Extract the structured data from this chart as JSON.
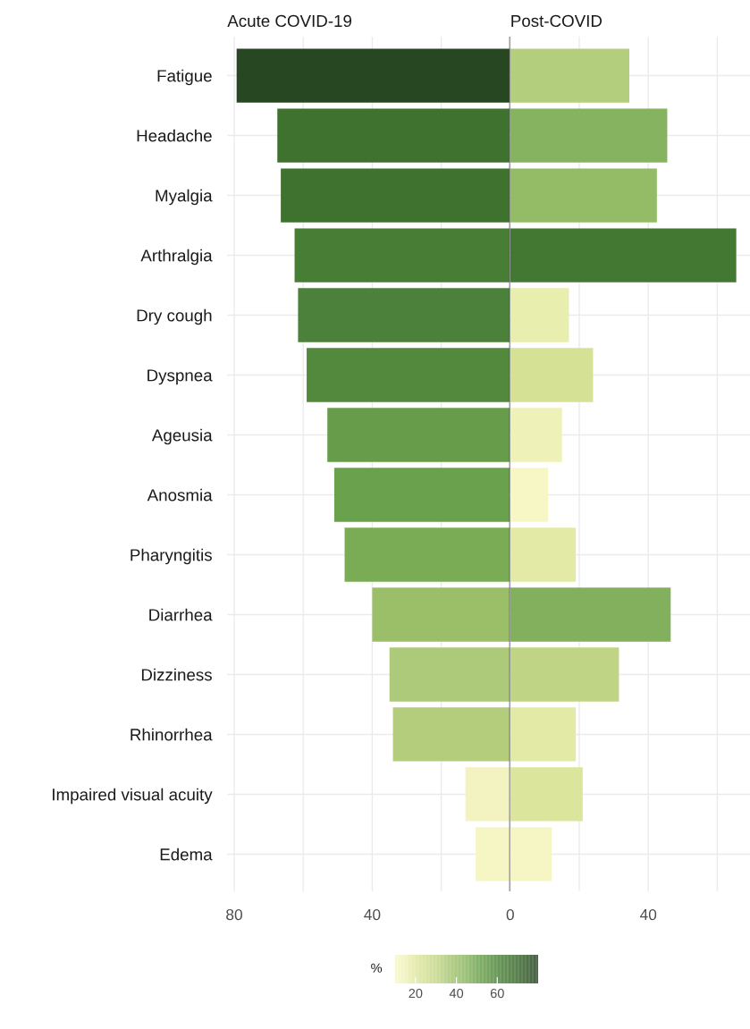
{
  "chart_data": [
    {
      "type": "bar",
      "orientation": "horizontal",
      "title": "Acute COVID-19",
      "categories": [
        "Fatigue",
        "Headache",
        "Myalgia",
        "Arthralgia",
        "Dry cough",
        "Dyspnea",
        "Ageusia",
        "Anosmia",
        "Pharyngitis",
        "Diarrhea",
        "Dizziness",
        "Rhinorrhea",
        "Impaired visual acuity",
        "Edema"
      ],
      "values": [
        79.3,
        67.5,
        66.5,
        62.5,
        61.5,
        59,
        53,
        51,
        48,
        40,
        35,
        34,
        13,
        10
      ],
      "colors": [
        "#264722",
        "#3f712f",
        "#3f712f",
        "#477d35",
        "#4b813a",
        "#52893d",
        "#679c4a",
        "#6aa14d",
        "#7aab55",
        "#9bbf69",
        "#adc97a",
        "#b3cd7d",
        "#f2f3c0",
        "#f6f6c4"
      ],
      "xlim": [
        82,
        0
      ],
      "xticks": [
        80,
        {
          "value": 60,
          "label": null
        },
        40,
        {
          "value": 20,
          "label": null
        },
        0
      ],
      "grid": true,
      "ref_lines": [
        {
          "axis": "x",
          "value": 0,
          "color": "#555555"
        }
      ],
      "clabel": "%",
      "clim": [
        10,
        80
      ],
      "cticks": [
        20,
        40,
        60
      ]
    },
    {
      "type": "bar",
      "orientation": "horizontal",
      "title": "Post-COVID",
      "values": [
        34.5,
        45.5,
        42.5,
        65.5,
        17,
        24,
        15,
        11,
        19,
        46.5,
        31.5,
        19,
        21,
        12
      ],
      "colors": [
        "#b3ce7c",
        "#86b360",
        "#94bb66",
        "#437833",
        "#e8eeae",
        "#d5e195",
        "#eef2b8",
        "#f7f7c6",
        "#e3eaa5",
        "#82b05c",
        "#bfd485",
        "#e3eaa5",
        "#dbe59c",
        "#f6f6c4"
      ],
      "xlim": [
        0,
        69.5
      ],
      "xticks": [
        {
          "value": 0,
          "label": null
        },
        {
          "value": 20,
          "label": null
        },
        40,
        {
          "value": 60,
          "label": null
        }
      ],
      "grid": true,
      "tick_labels": "x"
    }
  ]
}
